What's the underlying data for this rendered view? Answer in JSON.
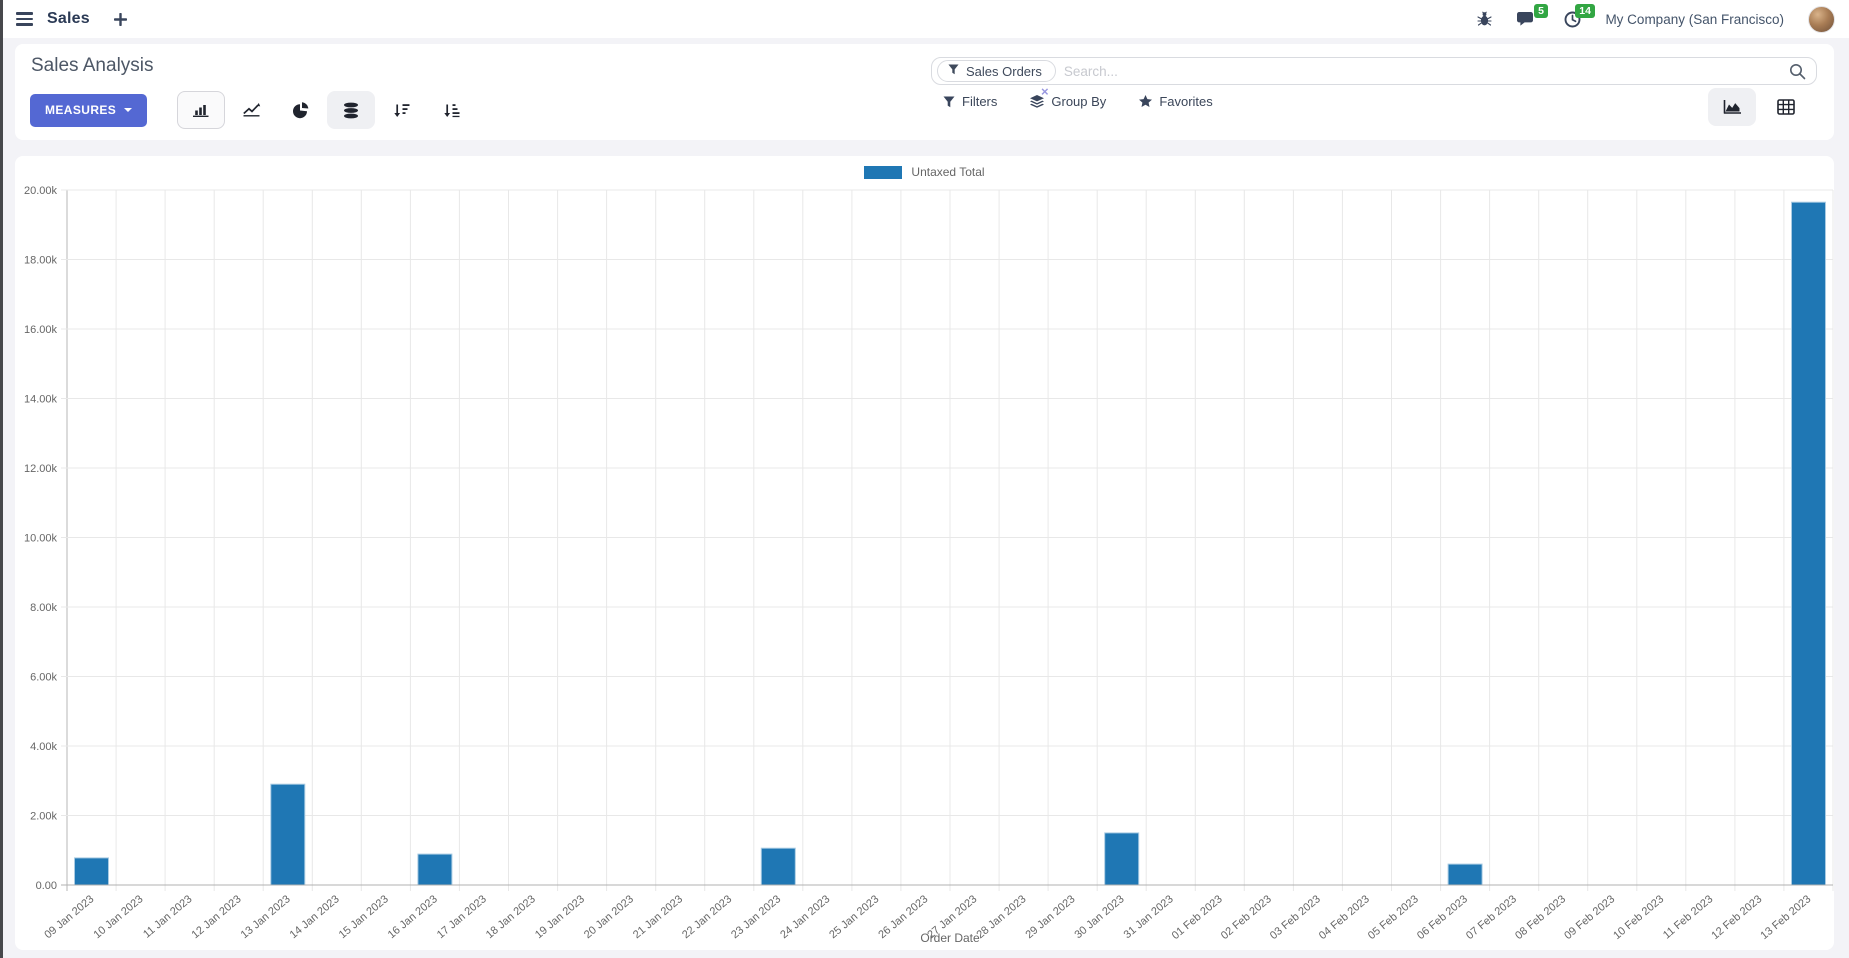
{
  "navbar": {
    "menu_label": "Sales",
    "messages_badge": "5",
    "activities_badge": "14",
    "company": "My Company (San Francisco)"
  },
  "control_panel": {
    "title": "Sales Analysis",
    "measures_label": "MEASURES",
    "search": {
      "facet": "Sales Orders",
      "facet_close": "×",
      "placeholder": "Search..."
    },
    "filter_buttons": [
      {
        "label": "Filters"
      },
      {
        "label": "Group By"
      },
      {
        "label": "Favorites"
      }
    ]
  },
  "icons": {
    "menu-icon": "☰",
    "add-icon": "+",
    "debug-icon": "bug",
    "messages-icon": "speech-bubble",
    "activities-icon": "clock",
    "search-icon": "magnifier",
    "filter-icon": "funnel",
    "group-by-icon": "layers",
    "favorites-icon": "★",
    "bar-chart-icon": "bar-chart",
    "line-chart-icon": "line-chart",
    "pie-chart-icon": "pie-chart",
    "stacked-icon": "database-stack",
    "sort-desc-icon": "arrow-down-bars-descending",
    "sort-asc-icon": "arrow-down-bars-ascending",
    "graph-view-icon": "area-chart",
    "pivot-view-icon": "table-grid",
    "caret-down-icon": "▾"
  },
  "colors": {
    "accent": "#5468d3",
    "badge_green": "#32a643",
    "bar": "#1f77b4"
  },
  "chart_data": {
    "type": "bar",
    "title": "",
    "legend": [
      "Untaxed Total"
    ],
    "series_name": "Untaxed Total",
    "categories": [
      "09 Jan 2023",
      "10 Jan 2023",
      "11 Jan 2023",
      "12 Jan 2023",
      "13 Jan 2023",
      "14 Jan 2023",
      "15 Jan 2023",
      "16 Jan 2023",
      "17 Jan 2023",
      "18 Jan 2023",
      "19 Jan 2023",
      "20 Jan 2023",
      "21 Jan 2023",
      "22 Jan 2023",
      "23 Jan 2023",
      "24 Jan 2023",
      "25 Jan 2023",
      "26 Jan 2023",
      "27 Jan 2023",
      "28 Jan 2023",
      "29 Jan 2023",
      "30 Jan 2023",
      "31 Jan 2023",
      "01 Feb 2023",
      "02 Feb 2023",
      "03 Feb 2023",
      "04 Feb 2023",
      "05 Feb 2023",
      "06 Feb 2023",
      "07 Feb 2023",
      "08 Feb 2023",
      "09 Feb 2023",
      "10 Feb 2023",
      "11 Feb 2023",
      "12 Feb 2023",
      "13 Feb 2023"
    ],
    "values": [
      780,
      0,
      0,
      0,
      2900,
      0,
      0,
      890,
      0,
      0,
      0,
      0,
      0,
      0,
      1060,
      0,
      0,
      0,
      0,
      0,
      0,
      1500,
      0,
      0,
      0,
      0,
      0,
      0,
      600,
      0,
      0,
      0,
      0,
      0,
      0,
      19650
    ],
    "xlabel": "Order Date",
    "ylabel": "",
    "ylim": [
      0,
      20000
    ],
    "ytick_step": 2000,
    "ytick_labels": [
      "0.00",
      "2.00k",
      "4.00k",
      "6.00k",
      "8.00k",
      "10.00k",
      "12.00k",
      "14.00k",
      "16.00k",
      "18.00k",
      "20.00k"
    ],
    "bar_color": "#1f77b4",
    "grid": true,
    "legend_position": "top"
  }
}
